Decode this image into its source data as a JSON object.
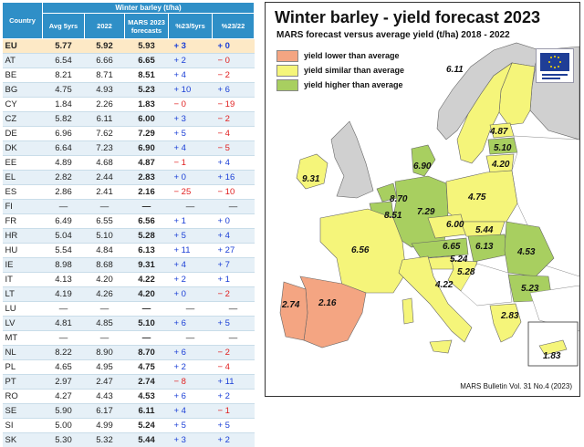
{
  "table": {
    "super_header": "Winter barley (t/ha)",
    "headers": {
      "country": "Country",
      "avg": "Avg 5yrs",
      "y2022": "2022",
      "forecast": "MARS 2023 forecasts",
      "d5": "%23/5yrs",
      "d22": "%23/22"
    },
    "rows": [
      {
        "c": "EU",
        "avg": "5.77",
        "y22": "5.92",
        "f": "5.93",
        "d5": "+ 3",
        "d22": "+ 0"
      },
      {
        "c": "AT",
        "avg": "6.54",
        "y22": "6.66",
        "f": "6.65",
        "d5": "+ 2",
        "d22": "− 0"
      },
      {
        "c": "BE",
        "avg": "8.21",
        "y22": "8.71",
        "f": "8.51",
        "d5": "+ 4",
        "d22": "− 2"
      },
      {
        "c": "BG",
        "avg": "4.75",
        "y22": "4.93",
        "f": "5.23",
        "d5": "+ 10",
        "d22": "+ 6"
      },
      {
        "c": "CY",
        "avg": "1.84",
        "y22": "2.26",
        "f": "1.83",
        "d5": "− 0",
        "d22": "− 19"
      },
      {
        "c": "CZ",
        "avg": "5.82",
        "y22": "6.11",
        "f": "6.00",
        "d5": "+ 3",
        "d22": "− 2"
      },
      {
        "c": "DE",
        "avg": "6.96",
        "y22": "7.62",
        "f": "7.29",
        "d5": "+ 5",
        "d22": "− 4"
      },
      {
        "c": "DK",
        "avg": "6.64",
        "y22": "7.23",
        "f": "6.90",
        "d5": "+ 4",
        "d22": "− 5"
      },
      {
        "c": "EE",
        "avg": "4.89",
        "y22": "4.68",
        "f": "4.87",
        "d5": "− 1",
        "d22": "+ 4"
      },
      {
        "c": "EL",
        "avg": "2.82",
        "y22": "2.44",
        "f": "2.83",
        "d5": "+ 0",
        "d22": "+ 16"
      },
      {
        "c": "ES",
        "avg": "2.86",
        "y22": "2.41",
        "f": "2.16",
        "d5": "− 25",
        "d22": "− 10"
      },
      {
        "c": "FI",
        "avg": "—",
        "y22": "—",
        "f": "—",
        "d5": "—",
        "d22": "—"
      },
      {
        "c": "FR",
        "avg": "6.49",
        "y22": "6.55",
        "f": "6.56",
        "d5": "+ 1",
        "d22": "+ 0"
      },
      {
        "c": "HR",
        "avg": "5.04",
        "y22": "5.10",
        "f": "5.28",
        "d5": "+ 5",
        "d22": "+ 4"
      },
      {
        "c": "HU",
        "avg": "5.54",
        "y22": "4.84",
        "f": "6.13",
        "d5": "+ 11",
        "d22": "+ 27"
      },
      {
        "c": "IE",
        "avg": "8.98",
        "y22": "8.68",
        "f": "9.31",
        "d5": "+ 4",
        "d22": "+ 7"
      },
      {
        "c": "IT",
        "avg": "4.13",
        "y22": "4.20",
        "f": "4.22",
        "d5": "+ 2",
        "d22": "+ 1"
      },
      {
        "c": "LT",
        "avg": "4.19",
        "y22": "4.26",
        "f": "4.20",
        "d5": "+ 0",
        "d22": "− 2"
      },
      {
        "c": "LU",
        "avg": "—",
        "y22": "—",
        "f": "—",
        "d5": "—",
        "d22": "—"
      },
      {
        "c": "LV",
        "avg": "4.81",
        "y22": "4.85",
        "f": "5.10",
        "d5": "+ 6",
        "d22": "+ 5"
      },
      {
        "c": "MT",
        "avg": "—",
        "y22": "—",
        "f": "—",
        "d5": "—",
        "d22": "—"
      },
      {
        "c": "NL",
        "avg": "8.22",
        "y22": "8.90",
        "f": "8.70",
        "d5": "+ 6",
        "d22": "− 2"
      },
      {
        "c": "PL",
        "avg": "4.65",
        "y22": "4.95",
        "f": "4.75",
        "d5": "+ 2",
        "d22": "− 4"
      },
      {
        "c": "PT",
        "avg": "2.97",
        "y22": "2.47",
        "f": "2.74",
        "d5": "− 8",
        "d22": "+ 11"
      },
      {
        "c": "RO",
        "avg": "4.27",
        "y22": "4.43",
        "f": "4.53",
        "d5": "+ 6",
        "d22": "+ 2"
      },
      {
        "c": "SE",
        "avg": "5.90",
        "y22": "6.17",
        "f": "6.11",
        "d5": "+ 4",
        "d22": "− 1"
      },
      {
        "c": "SI",
        "avg": "5.00",
        "y22": "4.99",
        "f": "5.24",
        "d5": "+ 5",
        "d22": "+ 5"
      },
      {
        "c": "SK",
        "avg": "5.30",
        "y22": "5.32",
        "f": "5.44",
        "d5": "+ 3",
        "d22": "+ 2"
      }
    ]
  },
  "map": {
    "title": "Winter barley - yield forecast 2023",
    "subtitle": "MARS forecast versus average yield (t/ha) 2018 - 2022",
    "legend": [
      {
        "label": "yield lower than average",
        "color": "#f4a582"
      },
      {
        "label": "yield similar than average",
        "color": "#f5f57a"
      },
      {
        "label": "yield higher than average",
        "color": "#a8cf60"
      }
    ],
    "footer": "MARS Bulletin Vol. 31 No.4 (2023)",
    "colors": {
      "lower": "#f4a582",
      "similar": "#f5f57a",
      "higher": "#a8cf60",
      "nodata": "#d0d0d0",
      "water": "#ffffff"
    },
    "labels": {
      "se": "6.11",
      "ie": "9.31",
      "dk": "6.90",
      "ee": "4.87",
      "lv": "5.10",
      "lt": "4.20",
      "nl": "8.70",
      "be": "8.51",
      "de": "7.29",
      "pl": "4.75",
      "cz": "6.00",
      "sk": "5.44",
      "fr": "6.56",
      "at": "6.65",
      "hu": "6.13",
      "ro": "4.53",
      "si": "5.24",
      "hr": "5.28",
      "it": "4.22",
      "bg": "5.23",
      "pt": "2.74",
      "es": "2.16",
      "el": "2.83",
      "cy": "1.83"
    }
  }
}
